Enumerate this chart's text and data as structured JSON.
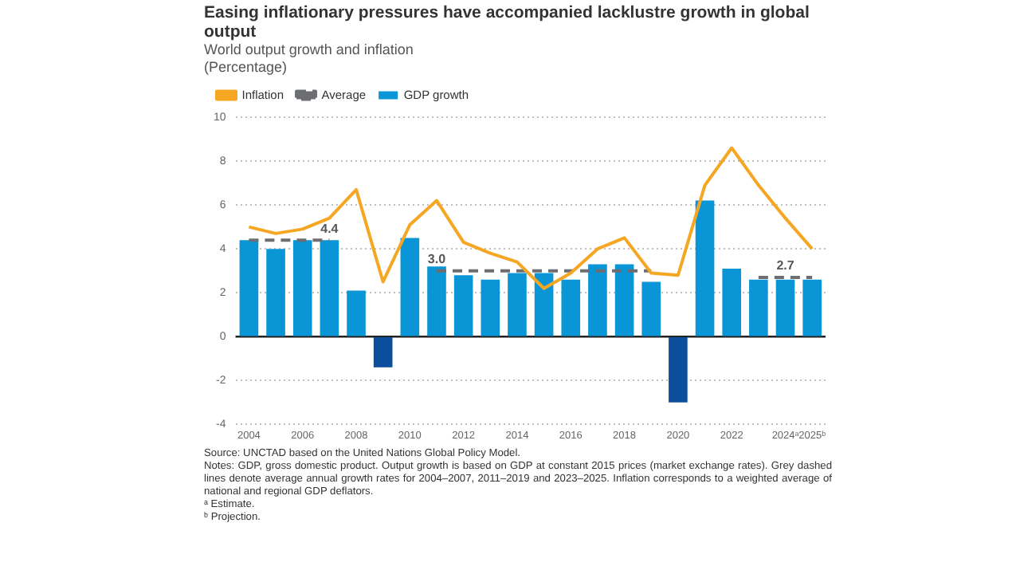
{
  "chart_data": {
    "type": "bar",
    "title": "Easing inflationary pressures have accompanied lacklustre growth in global output",
    "subtitle": "World output growth and inflation\n(Percentage)",
    "categories": [
      "2004",
      null,
      "2006",
      null,
      "2008",
      null,
      "2010",
      null,
      "2012",
      null,
      "2014",
      null,
      "2016",
      null,
      "2018",
      null,
      "2020",
      null,
      "2022",
      null,
      "2024ᵃ",
      "2025ᵇ"
    ],
    "series": [
      {
        "name": "Inflation",
        "type": "line",
        "color": "#f5a623",
        "values": [
          5.0,
          4.7,
          4.9,
          5.4,
          6.7,
          2.5,
          5.1,
          6.2,
          4.3,
          3.8,
          3.4,
          2.2,
          2.9,
          4.0,
          4.5,
          2.9,
          2.8,
          6.9,
          8.6,
          6.9,
          5.4,
          4.0
        ]
      },
      {
        "name": "Average",
        "type": "line",
        "line_style": "dashed",
        "color": "#6d6e71",
        "values": [
          4.4,
          4.4,
          4.4,
          4.4,
          null,
          null,
          null,
          3.0,
          3.0,
          3.0,
          3.0,
          3.0,
          3.0,
          3.0,
          3.0,
          3.0,
          null,
          null,
          null,
          2.7,
          2.7,
          2.7
        ],
        "value_labels": [
          null,
          null,
          null,
          "4.4",
          null,
          null,
          null,
          "3.0",
          null,
          null,
          null,
          null,
          null,
          null,
          null,
          null,
          null,
          null,
          null,
          null,
          "2.7",
          null
        ]
      },
      {
        "name": "GDP growth",
        "color": "#0a96d6",
        "colors": [
          "#0a96d6",
          "#0a96d6",
          "#0a96d6",
          "#0a96d6",
          "#0a96d6",
          "#0b4f9c",
          "#0a96d6",
          "#0a96d6",
          "#0a96d6",
          "#0a96d6",
          "#0a96d6",
          "#0a96d6",
          "#0a96d6",
          "#0a96d6",
          "#0a96d6",
          "#0a96d6",
          "#0b4f9c",
          "#0a96d6",
          "#0a96d6",
          "#0a96d6",
          "#0a96d6",
          "#0a96d6"
        ],
        "values": [
          4.4,
          4.0,
          4.4,
          4.4,
          2.1,
          -1.4,
          4.5,
          3.2,
          2.8,
          2.6,
          2.9,
          2.9,
          2.6,
          3.3,
          3.3,
          2.5,
          -3.0,
          6.2,
          3.1,
          2.6,
          2.6,
          2.6
        ]
      }
    ],
    "ref_lines": [
      {
        "axis": "y",
        "value": 0,
        "color": "#222222"
      }
    ],
    "ylim": [
      -4,
      10
    ],
    "yticks": [
      -4,
      -2,
      0,
      2,
      4,
      6,
      8,
      10
    ],
    "grid": "y",
    "legend": "top left",
    "marker": "none",
    "annotations": [
      "Source: UNCTAD based on the United Nations Global Policy Model.",
      "Notes: GDP, gross domestic product. Output growth is based on GDP at constant 2015 prices (market exchange rates). Grey dashed lines denote average annual growth rates for 2004–2007, 2011–2019 and 2023–2025. Inflation corresponds to a weighted average of national and regional GDP deflators.",
      "ᵃ Estimate.",
      "ᵇ Projection."
    ]
  }
}
